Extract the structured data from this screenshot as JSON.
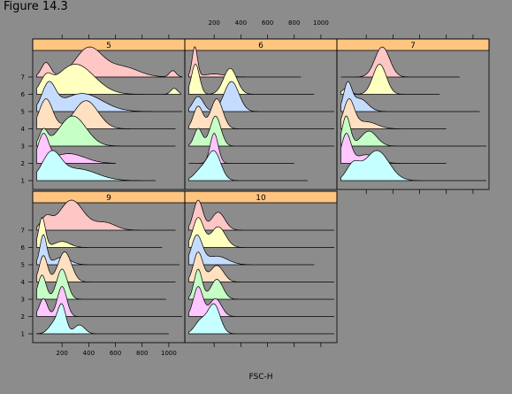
{
  "figure": {
    "title": "Figure 14.3"
  },
  "colors": {
    "background": "#8c8c8c",
    "strip": "#ffc580",
    "ridge_fills": [
      "#c6ffff",
      "#ffc6ff",
      "#c6ffc6",
      "#ffe0c0",
      "#c6dcff",
      "#ffffc0",
      "#ffc6c6"
    ]
  },
  "chart_data": {
    "type": "ridgeline",
    "xlabel": "FSC-H",
    "x_ticks": [
      200,
      400,
      600,
      800,
      1000
    ],
    "x_tick_labels": [
      "200",
      "400",
      "600",
      "800",
      "1000"
    ],
    "xlim": [
      0,
      1100
    ],
    "y_levels": [
      "1",
      "2",
      "3",
      "4",
      "5",
      "6",
      "7"
    ],
    "panels": [
      {
        "label": "5",
        "ridges": [
          {
            "level": "1",
            "xmax": 900,
            "peaks": [
              [
                120,
                1.0,
                70
              ],
              [
                320,
                0.45,
                140
              ]
            ]
          },
          {
            "level": "2",
            "xmax": 600,
            "peaks": [
              [
                60,
                0.85,
                40
              ],
              [
                250,
                0.3,
                120
              ]
            ]
          },
          {
            "level": "3",
            "xmax": 1050,
            "peaks": [
              [
                60,
                0.5,
                30
              ],
              [
                280,
                1.0,
                100
              ]
            ]
          },
          {
            "level": "4",
            "xmax": 1050,
            "peaks": [
              [
                80,
                0.8,
                50
              ],
              [
                380,
                0.75,
                90
              ]
            ]
          },
          {
            "level": "5",
            "xmax": 1100,
            "peaks": [
              [
                100,
                0.85,
                50
              ],
              [
                350,
                0.6,
                150
              ]
            ]
          },
          {
            "level": "6",
            "xmax": 1090,
            "peaks": [
              [
                80,
                0.4,
                40
              ],
              [
                300,
                1.0,
                140
              ],
              [
                1040,
                0.2,
                25
              ]
            ]
          },
          {
            "level": "7",
            "xmax": 1100,
            "peaks": [
              [
                80,
                0.5,
                35
              ],
              [
                400,
                1.0,
                100
              ],
              [
                650,
                0.35,
                120
              ],
              [
                1030,
                0.22,
                25
              ]
            ]
          }
        ]
      },
      {
        "label": "6",
        "ridges": [
          {
            "level": "1",
            "xmax": 900,
            "peaks": [
              [
                200,
                0.85,
                50
              ],
              [
                100,
                0.3,
                50
              ]
            ]
          },
          {
            "level": "2",
            "xmax": 800,
            "peaks": [
              [
                200,
                0.75,
                30
              ]
            ]
          },
          {
            "level": "3",
            "xmax": 1100,
            "peaks": [
              [
                80,
                0.5,
                30
              ],
              [
                210,
                0.85,
                40
              ]
            ]
          },
          {
            "level": "4",
            "xmax": 1100,
            "peaks": [
              [
                80,
                0.6,
                35
              ],
              [
                220,
                0.8,
                45
              ]
            ]
          },
          {
            "level": "5",
            "xmax": 1100,
            "peaks": [
              [
                80,
                0.5,
                40
              ],
              [
                330,
                1.0,
                55
              ]
            ]
          },
          {
            "level": "6",
            "xmax": 950,
            "peaks": [
              [
                60,
                0.7,
                30
              ],
              [
                320,
                0.6,
                50
              ]
            ]
          },
          {
            "level": "7",
            "xmax": 850,
            "peaks": [
              [
                55,
                1.0,
                20
              ],
              [
                200,
                0.1,
                80
              ]
            ]
          }
        ]
      },
      {
        "label": "7",
        "ridges": [
          {
            "level": "1",
            "xmax": 1100,
            "peaks": [
              [
                100,
                0.5,
                50
              ],
              [
                280,
                1.0,
                90
              ]
            ]
          },
          {
            "level": "2",
            "xmax": 800,
            "peaks": [
              [
                50,
                1.0,
                35
              ],
              [
                200,
                0.3,
                80
              ]
            ]
          },
          {
            "level": "3",
            "xmax": 1100,
            "peaks": [
              [
                50,
                0.5,
                30
              ],
              [
                220,
                0.25,
                60
              ]
            ]
          },
          {
            "level": "4",
            "xmax": 800,
            "peaks": [
              [
                70,
                0.8,
                40
              ],
              [
                200,
                0.2,
                80
              ]
            ]
          },
          {
            "level": "5",
            "xmax": 1050,
            "peaks": [
              [
                60,
                1.0,
                30
              ],
              [
                150,
                0.5,
                60
              ]
            ]
          },
          {
            "level": "6",
            "xmax": 750,
            "peaks": [
              [
                50,
                0.2,
                30
              ],
              [
                300,
                1.0,
                50
              ]
            ]
          },
          {
            "level": "7",
            "xmax": 900,
            "peaks": [
              [
                320,
                1.0,
                55
              ]
            ]
          }
        ]
      },
      {
        "label": "9",
        "ridges": [
          {
            "level": "1",
            "xmax": 1000,
            "peaks": [
              [
                200,
                0.9,
                30
              ],
              [
                140,
                0.35,
                40
              ],
              [
                330,
                0.3,
                40
              ]
            ]
          },
          {
            "level": "2",
            "xmax": 1100,
            "peaks": [
              [
                60,
                0.6,
                30
              ],
              [
                200,
                1.0,
                35
              ]
            ]
          },
          {
            "level": "3",
            "xmax": 980,
            "peaks": [
              [
                50,
                0.8,
                30
              ],
              [
                200,
                1.0,
                40
              ]
            ]
          },
          {
            "level": "4",
            "xmax": 1050,
            "peaks": [
              [
                60,
                0.7,
                30
              ],
              [
                220,
                0.8,
                50
              ]
            ]
          },
          {
            "level": "5",
            "xmax": 1080,
            "peaks": [
              [
                60,
                1.0,
                25
              ],
              [
                200,
                0.25,
                60
              ]
            ]
          },
          {
            "level": "6",
            "xmax": 950,
            "peaks": [
              [
                50,
                1.0,
                25
              ],
              [
                200,
                0.2,
                60
              ]
            ]
          },
          {
            "level": "7",
            "xmax": 1050,
            "peaks": [
              [
                80,
                0.4,
                40
              ],
              [
                270,
                1.0,
                90
              ],
              [
                520,
                0.25,
                80
              ]
            ]
          }
        ]
      },
      {
        "label": "10",
        "ridges": [
          {
            "level": "1",
            "xmax": 1100,
            "peaks": [
              [
                200,
                1.0,
                45
              ],
              [
                100,
                0.45,
                45
              ]
            ]
          },
          {
            "level": "2",
            "xmax": 1100,
            "peaks": [
              [
                80,
                1.0,
                35
              ],
              [
                210,
                0.6,
                45
              ]
            ]
          },
          {
            "level": "3",
            "xmax": 1100,
            "peaks": [
              [
                80,
                0.6,
                30
              ],
              [
                220,
                0.4,
                45
              ]
            ]
          },
          {
            "level": "4",
            "xmax": 1100,
            "peaks": [
              [
                80,
                0.9,
                35
              ],
              [
                220,
                0.5,
                50
              ]
            ]
          },
          {
            "level": "5",
            "xmax": 950,
            "peaks": [
              [
                70,
                1.0,
                40
              ],
              [
                220,
                0.3,
                80
              ]
            ]
          },
          {
            "level": "6",
            "xmax": 1100,
            "peaks": [
              [
                80,
                1.0,
                40
              ],
              [
                230,
                0.7,
                55
              ]
            ]
          },
          {
            "level": "7",
            "xmax": 1100,
            "peaks": [
              [
                80,
                1.0,
                35
              ],
              [
                230,
                0.6,
                50
              ]
            ]
          }
        ]
      }
    ]
  }
}
